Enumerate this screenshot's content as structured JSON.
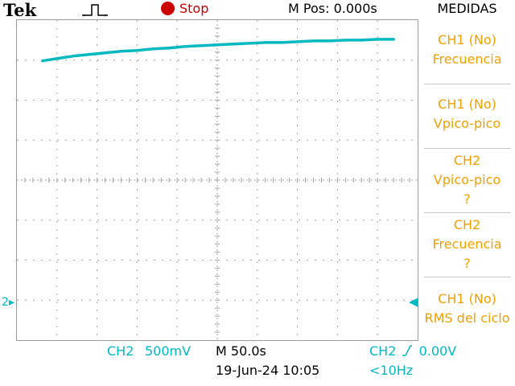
{
  "header": {
    "brand": "Tek",
    "trigger_icon": "pulse-trigger-icon",
    "status": "Stop",
    "status_color": "#cc0000",
    "mpos": "M Pos: 0.000s",
    "menu_title": "MEDIDAS"
  },
  "menu": {
    "items": [
      {
        "line1": "CH1 (No)",
        "line2": "Frecuencia",
        "line3": ""
      },
      {
        "line1": "CH1 (No)",
        "line2": "Vpico-pico",
        "line3": ""
      },
      {
        "line1": "CH2",
        "line2": "Vpico-pico",
        "line3": "?"
      },
      {
        "line1": "CH2",
        "line2": "Frecuencia",
        "line3": "?"
      },
      {
        "line1": "CH1 (No)",
        "line2": "RMS del ciclo",
        "line3": ""
      }
    ]
  },
  "footer": {
    "ch2_label": "CH2",
    "ch2_scale": "500mV",
    "timebase": "M 50.0s",
    "datetime": "19-Jun-24 10:05",
    "trigger_source": "CH2",
    "trigger_level": "0.00V",
    "trigger_freq": "<10Hz"
  },
  "markers": {
    "ch2_ground": "2"
  },
  "colors": {
    "channel2": "#00b8c0",
    "menu_text": "#f0a000",
    "grid": "#a0a0a0"
  },
  "chart_data": {
    "type": "line",
    "title": "",
    "xlabel": "",
    "ylabel": "",
    "x_unit": "s",
    "y_unit": "V",
    "xlim": [
      -250,
      250
    ],
    "ylim": [
      -0.5,
      3.5
    ],
    "grid": true,
    "series": [
      {
        "name": "CH2",
        "x": [
          -218,
          -200,
          -180,
          -160,
          -140,
          -120,
          -100,
          -80,
          -60,
          -40,
          -20,
          0,
          20,
          40,
          60,
          80,
          100,
          120,
          140,
          160,
          180,
          200,
          220
        ],
        "y": [
          2.99,
          3.02,
          3.05,
          3.07,
          3.09,
          3.11,
          3.12,
          3.14,
          3.15,
          3.17,
          3.18,
          3.19,
          3.2,
          3.21,
          3.22,
          3.22,
          3.23,
          3.24,
          3.24,
          3.25,
          3.25,
          3.26,
          3.26
        ]
      }
    ]
  }
}
